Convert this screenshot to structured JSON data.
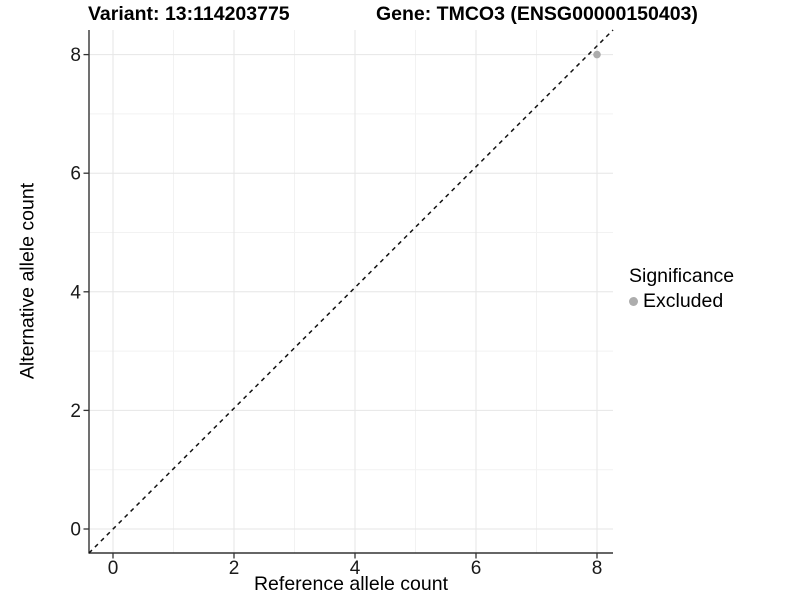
{
  "chart_data": {
    "type": "scatter",
    "title_left": "Variant: 13:114203775",
    "title_right": "Gene: TMCO3 (ENSG00000150403)",
    "xlabel": "Reference allele count",
    "ylabel": "Alternative allele count",
    "x_ticks": [
      0,
      2,
      4,
      6,
      8
    ],
    "y_ticks": [
      0,
      2,
      4,
      6,
      8
    ],
    "x_minor_ticks": [
      1,
      3,
      5,
      7
    ],
    "y_minor_ticks": [
      1,
      3,
      5,
      7
    ],
    "xlim": [
      -0.4,
      8.26
    ],
    "ylim": [
      -0.42,
      8.42
    ],
    "grid": true,
    "reference_line": {
      "type": "identity",
      "slope": 1,
      "intercept": 0,
      "style": "dashed",
      "color": "#111111"
    },
    "series": [
      {
        "name": "Excluded",
        "color": "#adadad",
        "points": [
          {
            "x": 8,
            "y": 8
          }
        ]
      }
    ],
    "legend": {
      "title": "Significance",
      "position": "right",
      "items": [
        {
          "label": "Excluded",
          "color": "#adadad",
          "marker": "circle"
        }
      ]
    },
    "colors": {
      "grid_major": "#e6e6e6",
      "grid_minor": "#f2f2f2",
      "axis": "#333333",
      "tick_text": "#1a1a1a",
      "background": "#ffffff"
    }
  }
}
